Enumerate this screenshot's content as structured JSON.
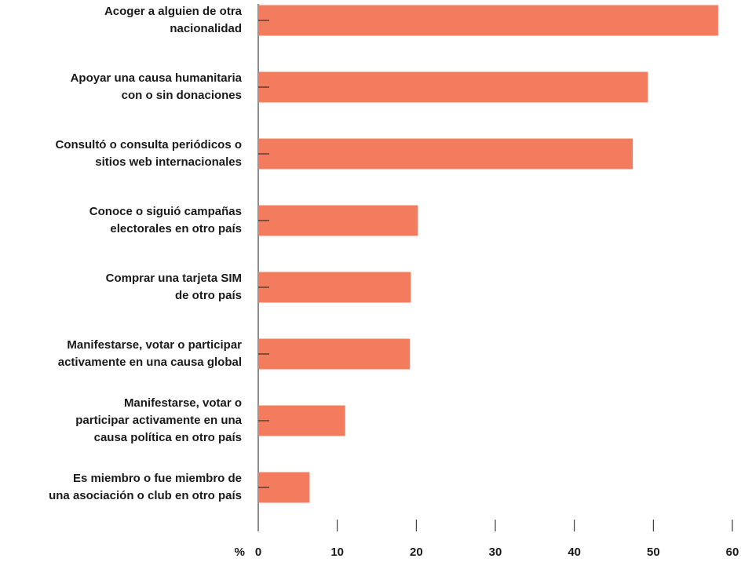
{
  "chart_data": {
    "type": "barh",
    "categories": [
      [
        "Acoger a alguien de otra",
        "nacionalidad"
      ],
      [
        "Apoyar una causa humanitaria",
        "con o sin donaciones"
      ],
      [
        "Consultó o consulta periódicos o",
        "sitios web internacionales"
      ],
      [
        "Conoce o siguió campañas",
        "electorales en otro país"
      ],
      [
        "Comprar una tarjeta SIM",
        "de otro país"
      ],
      [
        "Manifestarse, votar o participar",
        "activamente en una causa global"
      ],
      [
        "Manifestarse, votar o",
        "participar activamente en una",
        "causa política en otro país"
      ],
      [
        "Es miembro o fue miembro de",
        "una asociación o club en otro país"
      ]
    ],
    "values": [
      58.2,
      49.3,
      47.4,
      20.2,
      19.3,
      19.2,
      11.0,
      6.5
    ],
    "color": "#f47c5e",
    "xlabel": "%",
    "xlim": [
      0,
      60
    ],
    "xticks": [
      0,
      10,
      20,
      30,
      40,
      50,
      60
    ]
  }
}
